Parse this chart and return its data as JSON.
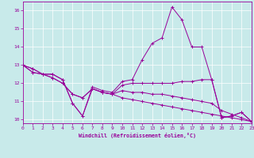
{
  "xlabel": "Windchill (Refroidissement éolien,°C)",
  "background_color": "#c8eaea",
  "line_color": "#990099",
  "grid_color": "#ffffff",
  "xmin": 0,
  "xmax": 23,
  "ymin": 9.8,
  "ymax": 16.5,
  "yticks": [
    10,
    11,
    12,
    13,
    14,
    15,
    16
  ],
  "xticks": [
    0,
    1,
    2,
    3,
    4,
    5,
    6,
    7,
    8,
    9,
    10,
    11,
    12,
    13,
    14,
    15,
    16,
    17,
    18,
    19,
    20,
    21,
    22,
    23
  ],
  "series": [
    [
      13.0,
      12.8,
      12.5,
      12.5,
      12.2,
      10.9,
      10.2,
      11.8,
      11.6,
      11.5,
      12.1,
      12.2,
      13.3,
      14.2,
      14.5,
      16.2,
      15.5,
      14.0,
      14.0,
      12.2,
      10.1,
      10.2,
      10.4,
      9.9
    ],
    [
      13.0,
      12.8,
      12.5,
      12.5,
      12.2,
      10.9,
      10.2,
      11.7,
      11.5,
      11.4,
      11.9,
      12.0,
      12.0,
      12.0,
      12.0,
      12.0,
      12.1,
      12.1,
      12.2,
      12.2,
      10.1,
      10.2,
      10.4,
      9.9
    ],
    [
      13.0,
      12.6,
      12.5,
      12.3,
      12.0,
      11.4,
      11.2,
      11.7,
      11.5,
      11.4,
      11.6,
      11.5,
      11.5,
      11.4,
      11.4,
      11.3,
      11.2,
      11.1,
      11.0,
      10.9,
      10.5,
      10.3,
      10.1,
      9.9
    ],
    [
      13.0,
      12.6,
      12.5,
      12.3,
      12.0,
      11.4,
      11.2,
      11.7,
      11.5,
      11.4,
      11.2,
      11.1,
      11.0,
      10.9,
      10.8,
      10.7,
      10.6,
      10.5,
      10.4,
      10.3,
      10.2,
      10.1,
      10.0,
      9.9
    ]
  ]
}
